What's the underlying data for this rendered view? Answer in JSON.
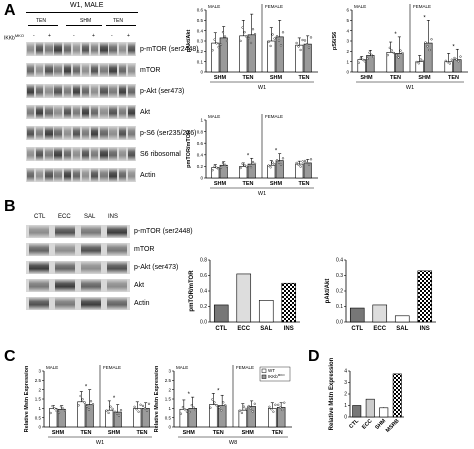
{
  "panelA": {
    "letter": "A",
    "header": "W1, MALE",
    "groups": [
      "TEN",
      "SHM",
      "TEN"
    ],
    "ikk_label": "IKKb",
    "ikk_sup": "MKO",
    "signs": [
      "-",
      "+",
      "-",
      "+",
      "-",
      "+"
    ],
    "blot_labels": [
      "p-mTOR (ser2448)",
      "mTOR",
      "p-Akt (ser473)",
      "Akt",
      "p-S6 (ser235/236)",
      "S6 ribosomal",
      "Actin"
    ]
  },
  "panelB": {
    "letter": "B",
    "lanes": [
      "CTL",
      "ECC",
      "SAL",
      "INS"
    ],
    "blot_labels": [
      "p-mTOR (ser2448)",
      "mTOR",
      "p-Akt (ser473)",
      "Akt",
      "Actin"
    ]
  },
  "panelC": {
    "letter": "C"
  },
  "panelD": {
    "letter": "D"
  },
  "chart_data": [
    {
      "id": "A1",
      "type": "bar",
      "ylabel": "pAkt/Akt",
      "xlabel": "W1",
      "groups": [
        "MALE",
        "FEMALE"
      ],
      "categories": [
        "SHM",
        "TEN",
        "SHM",
        "TEN"
      ],
      "ylim": [
        0,
        0.6
      ],
      "yticks": [
        0,
        0.1,
        0.2,
        0.3,
        0.4,
        0.5,
        0.6
      ],
      "series": [
        {
          "values": [
            0.28,
            0.35,
            0.3,
            0.26
          ]
        },
        {
          "values": [
            0.33,
            0.36,
            0.34,
            0.27
          ]
        }
      ],
      "errors": [
        [
          0.1,
          0.15,
          0.13,
          0.07
        ],
        [
          0.11,
          0.2,
          0.16,
          0.08
        ]
      ],
      "stars": []
    },
    {
      "id": "A2",
      "type": "bar",
      "ylabel": "pS6/S6",
      "xlabel": "W1",
      "groups": [
        "MALE",
        "FEMALE"
      ],
      "categories": [
        "SHM",
        "TEN",
        "SHM",
        "TEN"
      ],
      "ylim": [
        0,
        6
      ],
      "yticks": [
        0,
        1,
        2,
        3,
        4,
        5,
        6
      ],
      "series": [
        {
          "values": [
            1.2,
            1.9,
            1.0,
            1.0
          ]
        },
        {
          "values": [
            1.6,
            1.8,
            2.8,
            1.2
          ]
        }
      ],
      "errors": [
        [
          0.3,
          1.0,
          0.6,
          0.8
        ],
        [
          0.5,
          1.6,
          2.2,
          1.0
        ]
      ],
      "stars": [
        "",
        "*",
        "*",
        "*"
      ]
    },
    {
      "id": "A3",
      "type": "bar",
      "ylabel": "pmTOR/mTOR",
      "xlabel": "W1",
      "groups": [
        "MALE",
        "FEMALE"
      ],
      "categories": [
        "SHM",
        "TEN",
        "SHM",
        "TEN"
      ],
      "ylim": [
        0,
        1.0
      ],
      "yticks": [
        0,
        0.2,
        0.4,
        0.6,
        0.8,
        1.0
      ],
      "series": [
        {
          "values": [
            0.18,
            0.2,
            0.22,
            0.24
          ]
        },
        {
          "values": [
            0.22,
            0.24,
            0.3,
            0.26
          ]
        }
      ],
      "errors": [
        [
          0.05,
          0.06,
          0.08,
          0.05
        ],
        [
          0.06,
          0.1,
          0.12,
          0.06
        ]
      ],
      "stars": [
        "",
        "*",
        "*",
        ""
      ]
    },
    {
      "id": "B1",
      "type": "bar",
      "ylabel": "pmTOR/mTOR",
      "categories": [
        "CTL",
        "ECC",
        "SAL",
        "INS"
      ],
      "ylim": [
        0,
        0.8
      ],
      "yticks": [
        0.0,
        0.2,
        0.4,
        0.6,
        0.8
      ],
      "values": [
        0.22,
        0.62,
        0.28,
        0.5
      ]
    },
    {
      "id": "B2",
      "type": "bar",
      "ylabel": "pAkt/Akt",
      "categories": [
        "CTL",
        "ECC",
        "SAL",
        "INS"
      ],
      "ylim": [
        0,
        0.4
      ],
      "yticks": [
        0.0,
        0.1,
        0.2,
        0.3,
        0.4
      ],
      "values": [
        0.09,
        0.11,
        0.04,
        0.33
      ]
    },
    {
      "id": "C1",
      "type": "bar",
      "ylabel": "Relative Mstn Expression",
      "xlabel": "W1",
      "groups": [
        "MALE",
        "FEMALE"
      ],
      "categories": [
        "SHM",
        "TEN",
        "SHM",
        "TEN"
      ],
      "ylim": [
        0,
        3
      ],
      "yticks": [
        0.0,
        0.5,
        1.0,
        1.5,
        2.0,
        2.5,
        3.0
      ],
      "series": [
        {
          "name": "WT",
          "values": [
            1.0,
            1.35,
            0.9,
            1.0
          ]
        },
        {
          "name": "IKKb",
          "name_sup": "MKO",
          "values": [
            0.95,
            1.2,
            0.8,
            1.0
          ]
        }
      ],
      "errors": [
        [
          0.15,
          0.55,
          0.5,
          0.35
        ],
        [
          0.2,
          0.8,
          0.4,
          0.3
        ]
      ],
      "stars": [
        "",
        "*",
        "*",
        ""
      ]
    },
    {
      "id": "C2",
      "type": "bar",
      "ylabel": "Relative Mstn Expression",
      "xlabel": "W8",
      "groups": [
        "MALE",
        "FEMALE"
      ],
      "categories": [
        "SHM",
        "TEN",
        "SHM",
        "TEN"
      ],
      "ylim": [
        0,
        3
      ],
      "yticks": [
        0.0,
        0.5,
        1.0,
        1.5,
        2.0,
        2.5,
        3.0
      ],
      "series": [
        {
          "name": "WT",
          "values": [
            0.95,
            1.2,
            0.9,
            1.0
          ]
        },
        {
          "name": "IKKb",
          "name_sup": "MKO",
          "values": [
            1.0,
            1.15,
            1.1,
            1.05
          ]
        }
      ],
      "errors": [
        [
          0.5,
          0.6,
          0.35,
          0.3
        ],
        [
          0.6,
          0.55,
          0.3,
          0.25
        ]
      ],
      "stars": [
        "*",
        "*",
        "",
        ""
      ],
      "legend": "top-right"
    },
    {
      "id": "D1",
      "type": "bar",
      "ylabel": "Relative Mstn Expression",
      "categories": [
        "CTL",
        "ECC",
        "SHM",
        "MSRB"
      ],
      "ylim": [
        0,
        4
      ],
      "yticks": [
        0,
        1,
        2,
        3,
        4
      ],
      "values": [
        1.0,
        1.55,
        0.8,
        3.75
      ],
      "errors": [
        0,
        0,
        0.05,
        0
      ]
    }
  ]
}
